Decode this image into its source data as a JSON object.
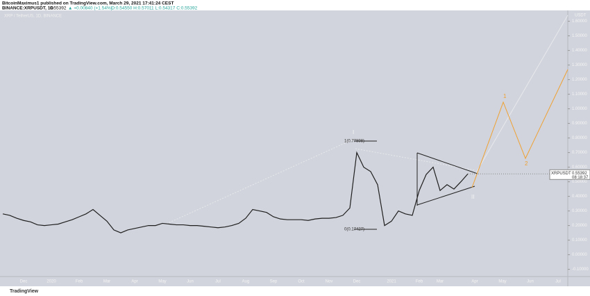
{
  "header": {
    "publisher": "BitcoinMaximus1 published on TradingView.com, March 29, 2021 17:41:24 CEST",
    "symbol": "BINANCE:XRPUSDT, 1D",
    "last": "0.55392",
    "change": "▲ +0.00840 (+1.54%)",
    "ohlc": "O:0.54550 H:0.57011 L:0.54317 C:0.55392"
  },
  "footer": "TradingView",
  "chart_data": {
    "type": "line",
    "title": "XRP / TetherUS, 1D, BINANCE",
    "y_unit": "USDT",
    "color": "#1e1e1e",
    "categories": [
      null,
      null,
      null,
      "Dec",
      null,
      null,
      null,
      "2020",
      null,
      null,
      null,
      "Feb",
      null,
      null,
      null,
      "Mar",
      null,
      null,
      null,
      "Apr",
      null,
      null,
      null,
      "May",
      null,
      null,
      null,
      "Jun",
      null,
      null,
      null,
      "Jul",
      null,
      null,
      null,
      "Aug",
      null,
      null,
      null,
      "Sep",
      null,
      null,
      null,
      "Oct",
      null,
      null,
      null,
      "Nov",
      null,
      null,
      null,
      "Dec",
      null,
      null,
      null,
      null,
      "2021",
      null,
      null,
      null,
      "Feb",
      null,
      null,
      "Mar",
      null,
      null,
      null,
      null,
      "Apr",
      null,
      null,
      null,
      "May",
      null,
      null,
      null,
      "Jun",
      null,
      null,
      null,
      "Jul"
    ],
    "values": [
      0.28,
      0.27,
      0.25,
      0.235,
      0.225,
      0.205,
      0.2,
      0.205,
      0.21,
      0.225,
      0.24,
      0.26,
      0.28,
      0.31,
      0.27,
      0.23,
      0.17,
      0.15,
      0.17,
      0.18,
      0.19,
      0.2,
      0.2,
      0.215,
      0.21,
      0.205,
      0.205,
      0.2,
      0.2,
      0.195,
      0.19,
      0.185,
      0.19,
      0.2,
      0.215,
      0.25,
      0.31,
      0.3,
      0.29,
      0.26,
      0.245,
      0.24,
      0.24,
      0.24,
      0.235,
      0.245,
      0.25,
      0.25,
      0.255,
      0.27,
      0.32,
      0.7,
      0.6,
      0.57,
      0.48,
      0.2,
      0.23,
      0.3,
      0.28,
      0.27,
      0.44,
      0.55,
      0.6,
      0.44,
      0.48,
      0.45,
      0.5,
      0.55392,
      null,
      null,
      null,
      null,
      null,
      null,
      null,
      null,
      null,
      null,
      null,
      null,
      null
    ],
    "ylim": [
      -0.14,
      1.66
    ],
    "yticks": [
      {
        "value": 1.6,
        "label": "1.60000"
      },
      {
        "value": 1.5,
        "label": "1.50000"
      },
      {
        "value": 1.4,
        "label": "1.40000"
      },
      {
        "value": 1.3,
        "label": "1.30000"
      },
      {
        "value": 1.2,
        "label": "1.20000"
      },
      {
        "value": 1.1,
        "label": "1.10000"
      },
      {
        "value": 1.0,
        "label": "1.00000"
      },
      {
        "value": 0.9,
        "label": "0.90000"
      },
      {
        "value": 0.8,
        "label": "0.80000"
      },
      {
        "value": 0.7,
        "label": "0.70000"
      },
      {
        "value": 0.6,
        "label": "0.60000"
      },
      {
        "value": 0.5,
        "label": "0.50000"
      },
      {
        "value": 0.4,
        "label": "0.40000"
      },
      {
        "value": 0.3,
        "label": "0.30000"
      },
      {
        "value": 0.2,
        "label": "0.20000"
      },
      {
        "value": 0.1,
        "label": "0.10000"
      },
      {
        "value": 0,
        "label": "0.00000"
      },
      {
        "value": -0.1,
        "label": "-0.10000"
      }
    ],
    "price_tag": {
      "symbol": "XRPUSDT",
      "price": "0.55392",
      "countdown": "08:18:37"
    },
    "annotations": {
      "fib_top": "1(0.77898)",
      "fib_bottom": "0(0.17427)",
      "wave_i": "I",
      "wave_ii": "II",
      "proj_1": "1",
      "proj_2": "2"
    }
  }
}
